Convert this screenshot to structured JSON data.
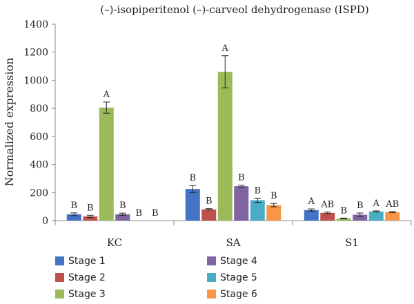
{
  "chart_data": {
    "type": "bar",
    "title": "(–)-isopiperitenol (–)-carveol dehydrogenase (ISPD)",
    "xlabel": "",
    "ylabel": "Normalized expression",
    "ylim": [
      0,
      1400
    ],
    "yticks": [
      0,
      200,
      400,
      600,
      800,
      1000,
      1200,
      1400
    ],
    "grid": false,
    "legend_position": "bottom",
    "categories": [
      "KC",
      "SA",
      "S1"
    ],
    "series": [
      {
        "name": "Stage 1",
        "color": "#4472C4",
        "values": [
          45,
          225,
          75
        ],
        "errors": [
          10,
          25,
          8
        ],
        "labels": [
          "B",
          "B",
          "A"
        ]
      },
      {
        "name": "Stage 2",
        "color": "#C0504D",
        "values": [
          30,
          80,
          55
        ],
        "errors": [
          8,
          5,
          6
        ],
        "labels": [
          "B",
          "B",
          "AB"
        ]
      },
      {
        "name": "Stage 3",
        "color": "#9BBB59",
        "values": [
          805,
          1060,
          15
        ],
        "errors": [
          40,
          115,
          3
        ],
        "labels": [
          "A",
          "A",
          "B"
        ]
      },
      {
        "name": "Stage 4",
        "color": "#8064A2",
        "values": [
          45,
          245,
          42
        ],
        "errors": [
          8,
          8,
          12
        ],
        "labels": [
          "B",
          "B",
          "B"
        ]
      },
      {
        "name": "Stage 5",
        "color": "#4BACC6",
        "values": [
          0,
          145,
          65
        ],
        "errors": [
          0,
          15,
          4
        ],
        "labels": [
          "B",
          "B",
          "A"
        ]
      },
      {
        "name": "Stage 6",
        "color": "#F79646",
        "values": [
          0,
          110,
          60
        ],
        "errors": [
          0,
          12,
          4
        ],
        "labels": [
          "B",
          "B",
          "AB"
        ]
      }
    ]
  }
}
